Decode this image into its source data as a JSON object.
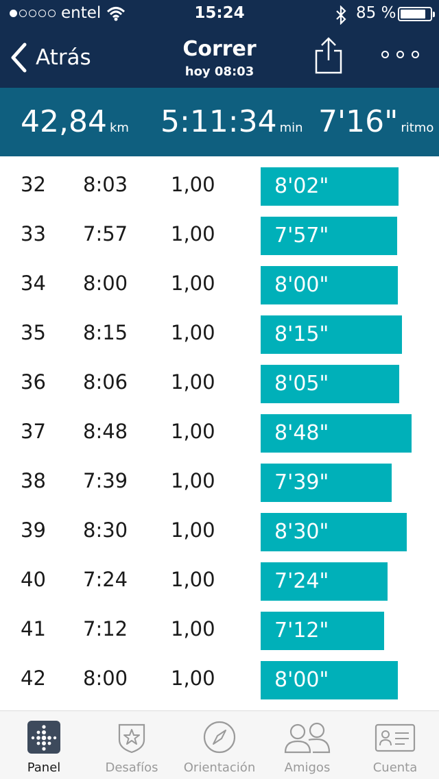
{
  "status_bar": {
    "carrier": "entel",
    "time": "15:24",
    "battery_pct": "85 %",
    "battery_level": 0.85
  },
  "nav": {
    "back_label": "Atrás",
    "title": "Correr",
    "subtitle": "hoy 08:03"
  },
  "summary": {
    "distance": "42,84",
    "distance_unit": "km",
    "duration": "5:11:34",
    "duration_unit": "min",
    "pace": "7'16\"",
    "pace_unit": "ritmo"
  },
  "splits": [
    {
      "km": "32",
      "time": "8:03",
      "dist": "1,00",
      "pace": "8'02\"",
      "pace_seconds": 482
    },
    {
      "km": "33",
      "time": "7:57",
      "dist": "1,00",
      "pace": "7'57\"",
      "pace_seconds": 477
    },
    {
      "km": "34",
      "time": "8:00",
      "dist": "1,00",
      "pace": "8'00\"",
      "pace_seconds": 480
    },
    {
      "km": "35",
      "time": "8:15",
      "dist": "1,00",
      "pace": "8'15\"",
      "pace_seconds": 495
    },
    {
      "km": "36",
      "time": "8:06",
      "dist": "1,00",
      "pace": "8'05\"",
      "pace_seconds": 485
    },
    {
      "km": "37",
      "time": "8:48",
      "dist": "1,00",
      "pace": "8'48\"",
      "pace_seconds": 528
    },
    {
      "km": "38",
      "time": "7:39",
      "dist": "1,00",
      "pace": "7'39\"",
      "pace_seconds": 459
    },
    {
      "km": "39",
      "time": "8:30",
      "dist": "1,00",
      "pace": "8'30\"",
      "pace_seconds": 510
    },
    {
      "km": "40",
      "time": "7:24",
      "dist": "1,00",
      "pace": "7'24\"",
      "pace_seconds": 444
    },
    {
      "km": "41",
      "time": "7:12",
      "dist": "1,00",
      "pace": "7'12\"",
      "pace_seconds": 432
    },
    {
      "km": "42",
      "time": "8:00",
      "dist": "1,00",
      "pace": "8'00\"",
      "pace_seconds": 480
    }
  ],
  "tabs": [
    {
      "label": "Panel",
      "icon": "fitbit-dots-icon",
      "active": true
    },
    {
      "label": "Desafíos",
      "icon": "star-shield-icon",
      "active": false
    },
    {
      "label": "Orientación",
      "icon": "compass-icon",
      "active": false
    },
    {
      "label": "Amigos",
      "icon": "people-icon",
      "active": false
    },
    {
      "label": "Cuenta",
      "icon": "id-card-icon",
      "active": false
    }
  ],
  "colors": {
    "nav_bg": "#132d50",
    "summary_bg": "#0f5f7f",
    "bar": "#00b0b9"
  }
}
